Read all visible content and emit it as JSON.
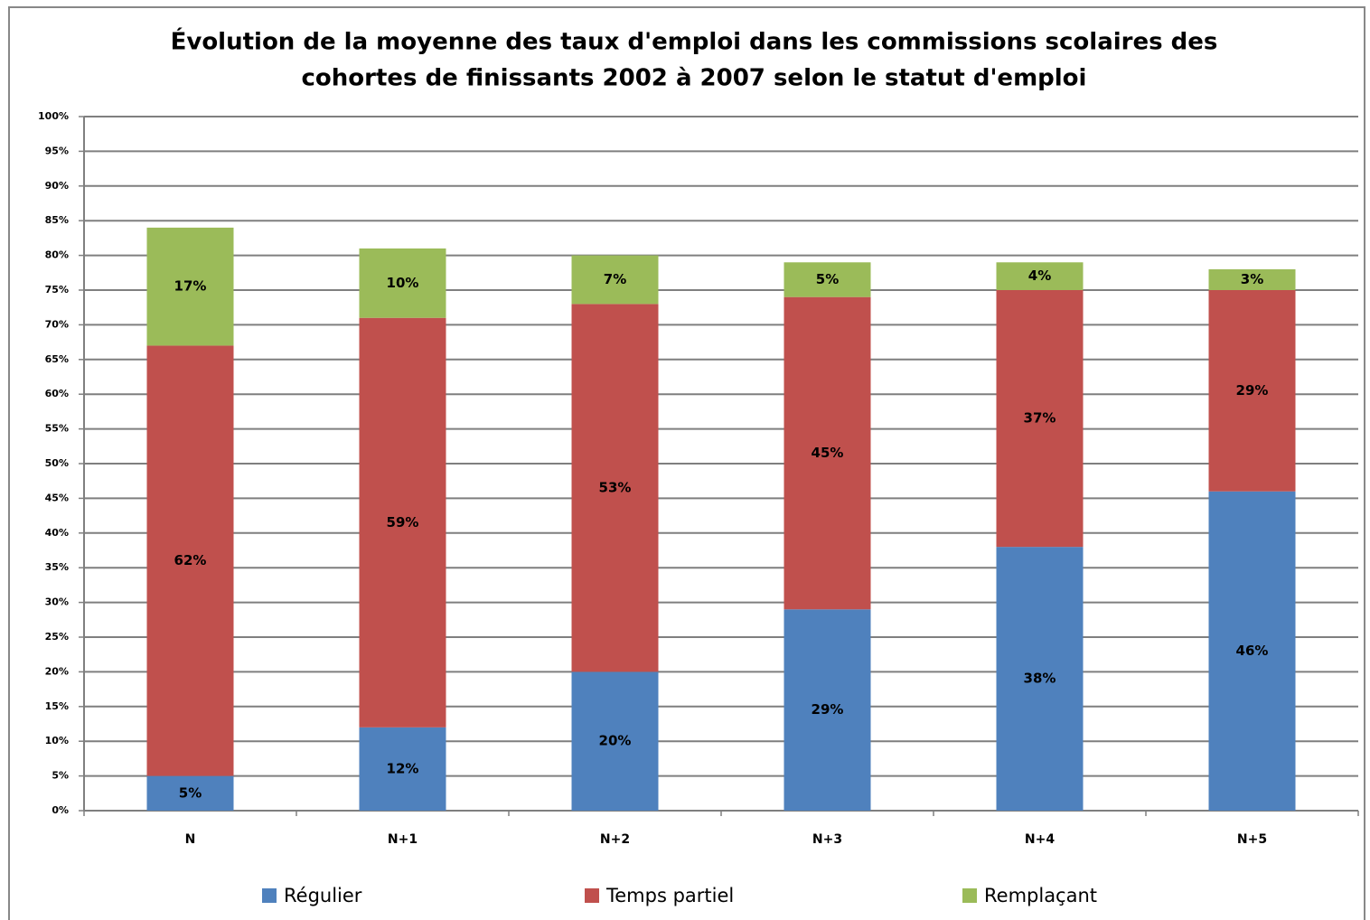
{
  "chart_data": {
    "type": "stacked_bar",
    "title": [
      "Évolution de la moyenne des taux d'emploi dans les commissions scolaires des",
      "cohortes de finissants 2002 à 2007 selon le statut d'emploi"
    ],
    "categories": [
      "N",
      "N+1",
      "N+2",
      "N+3",
      "N+4",
      "N+5"
    ],
    "series": [
      {
        "name": "Régulier",
        "color": "#4f81bd",
        "values": [
          5,
          12,
          20,
          29,
          38,
          46
        ],
        "value_labels": [
          "5%",
          "12%",
          "20%",
          "29%",
          "38%",
          "46%"
        ]
      },
      {
        "name": "Temps partiel",
        "color": "#c0504d",
        "values": [
          62,
          59,
          53,
          45,
          37,
          29
        ],
        "value_labels": [
          "62%",
          "59%",
          "53%",
          "45%",
          "37%",
          "29%"
        ]
      },
      {
        "name": "Remplaçant",
        "color": "#9bbb59",
        "values": [
          17,
          10,
          7,
          5,
          4,
          3
        ],
        "value_labels": [
          "17%",
          "10%",
          "7%",
          "5%",
          "4%",
          "3%"
        ]
      }
    ],
    "ylim": [
      0,
      100
    ],
    "yticks": [
      {
        "value": 0,
        "label": "0%"
      },
      {
        "value": 5,
        "label": "5%"
      },
      {
        "value": 10,
        "label": "10%"
      },
      {
        "value": 15,
        "label": "15%"
      },
      {
        "value": 20,
        "label": "20%"
      },
      {
        "value": 25,
        "label": "25%"
      },
      {
        "value": 30,
        "label": "30%"
      },
      {
        "value": 35,
        "label": "35%"
      },
      {
        "value": 40,
        "label": "40%"
      },
      {
        "value": 45,
        "label": "45%"
      },
      {
        "value": 50,
        "label": "50%"
      },
      {
        "value": 55,
        "label": "55%"
      },
      {
        "value": 60,
        "label": "60%"
      },
      {
        "value": 65,
        "label": "65%"
      },
      {
        "value": 70,
        "label": "70%"
      },
      {
        "value": 75,
        "label": "75%"
      },
      {
        "value": 80,
        "label": "80%"
      },
      {
        "value": 85,
        "label": "85%"
      },
      {
        "value": 90,
        "label": "90%"
      },
      {
        "value": 95,
        "label": "95%"
      },
      {
        "value": 100,
        "label": "100%"
      }
    ],
    "grid": true,
    "legend": "bottom"
  }
}
